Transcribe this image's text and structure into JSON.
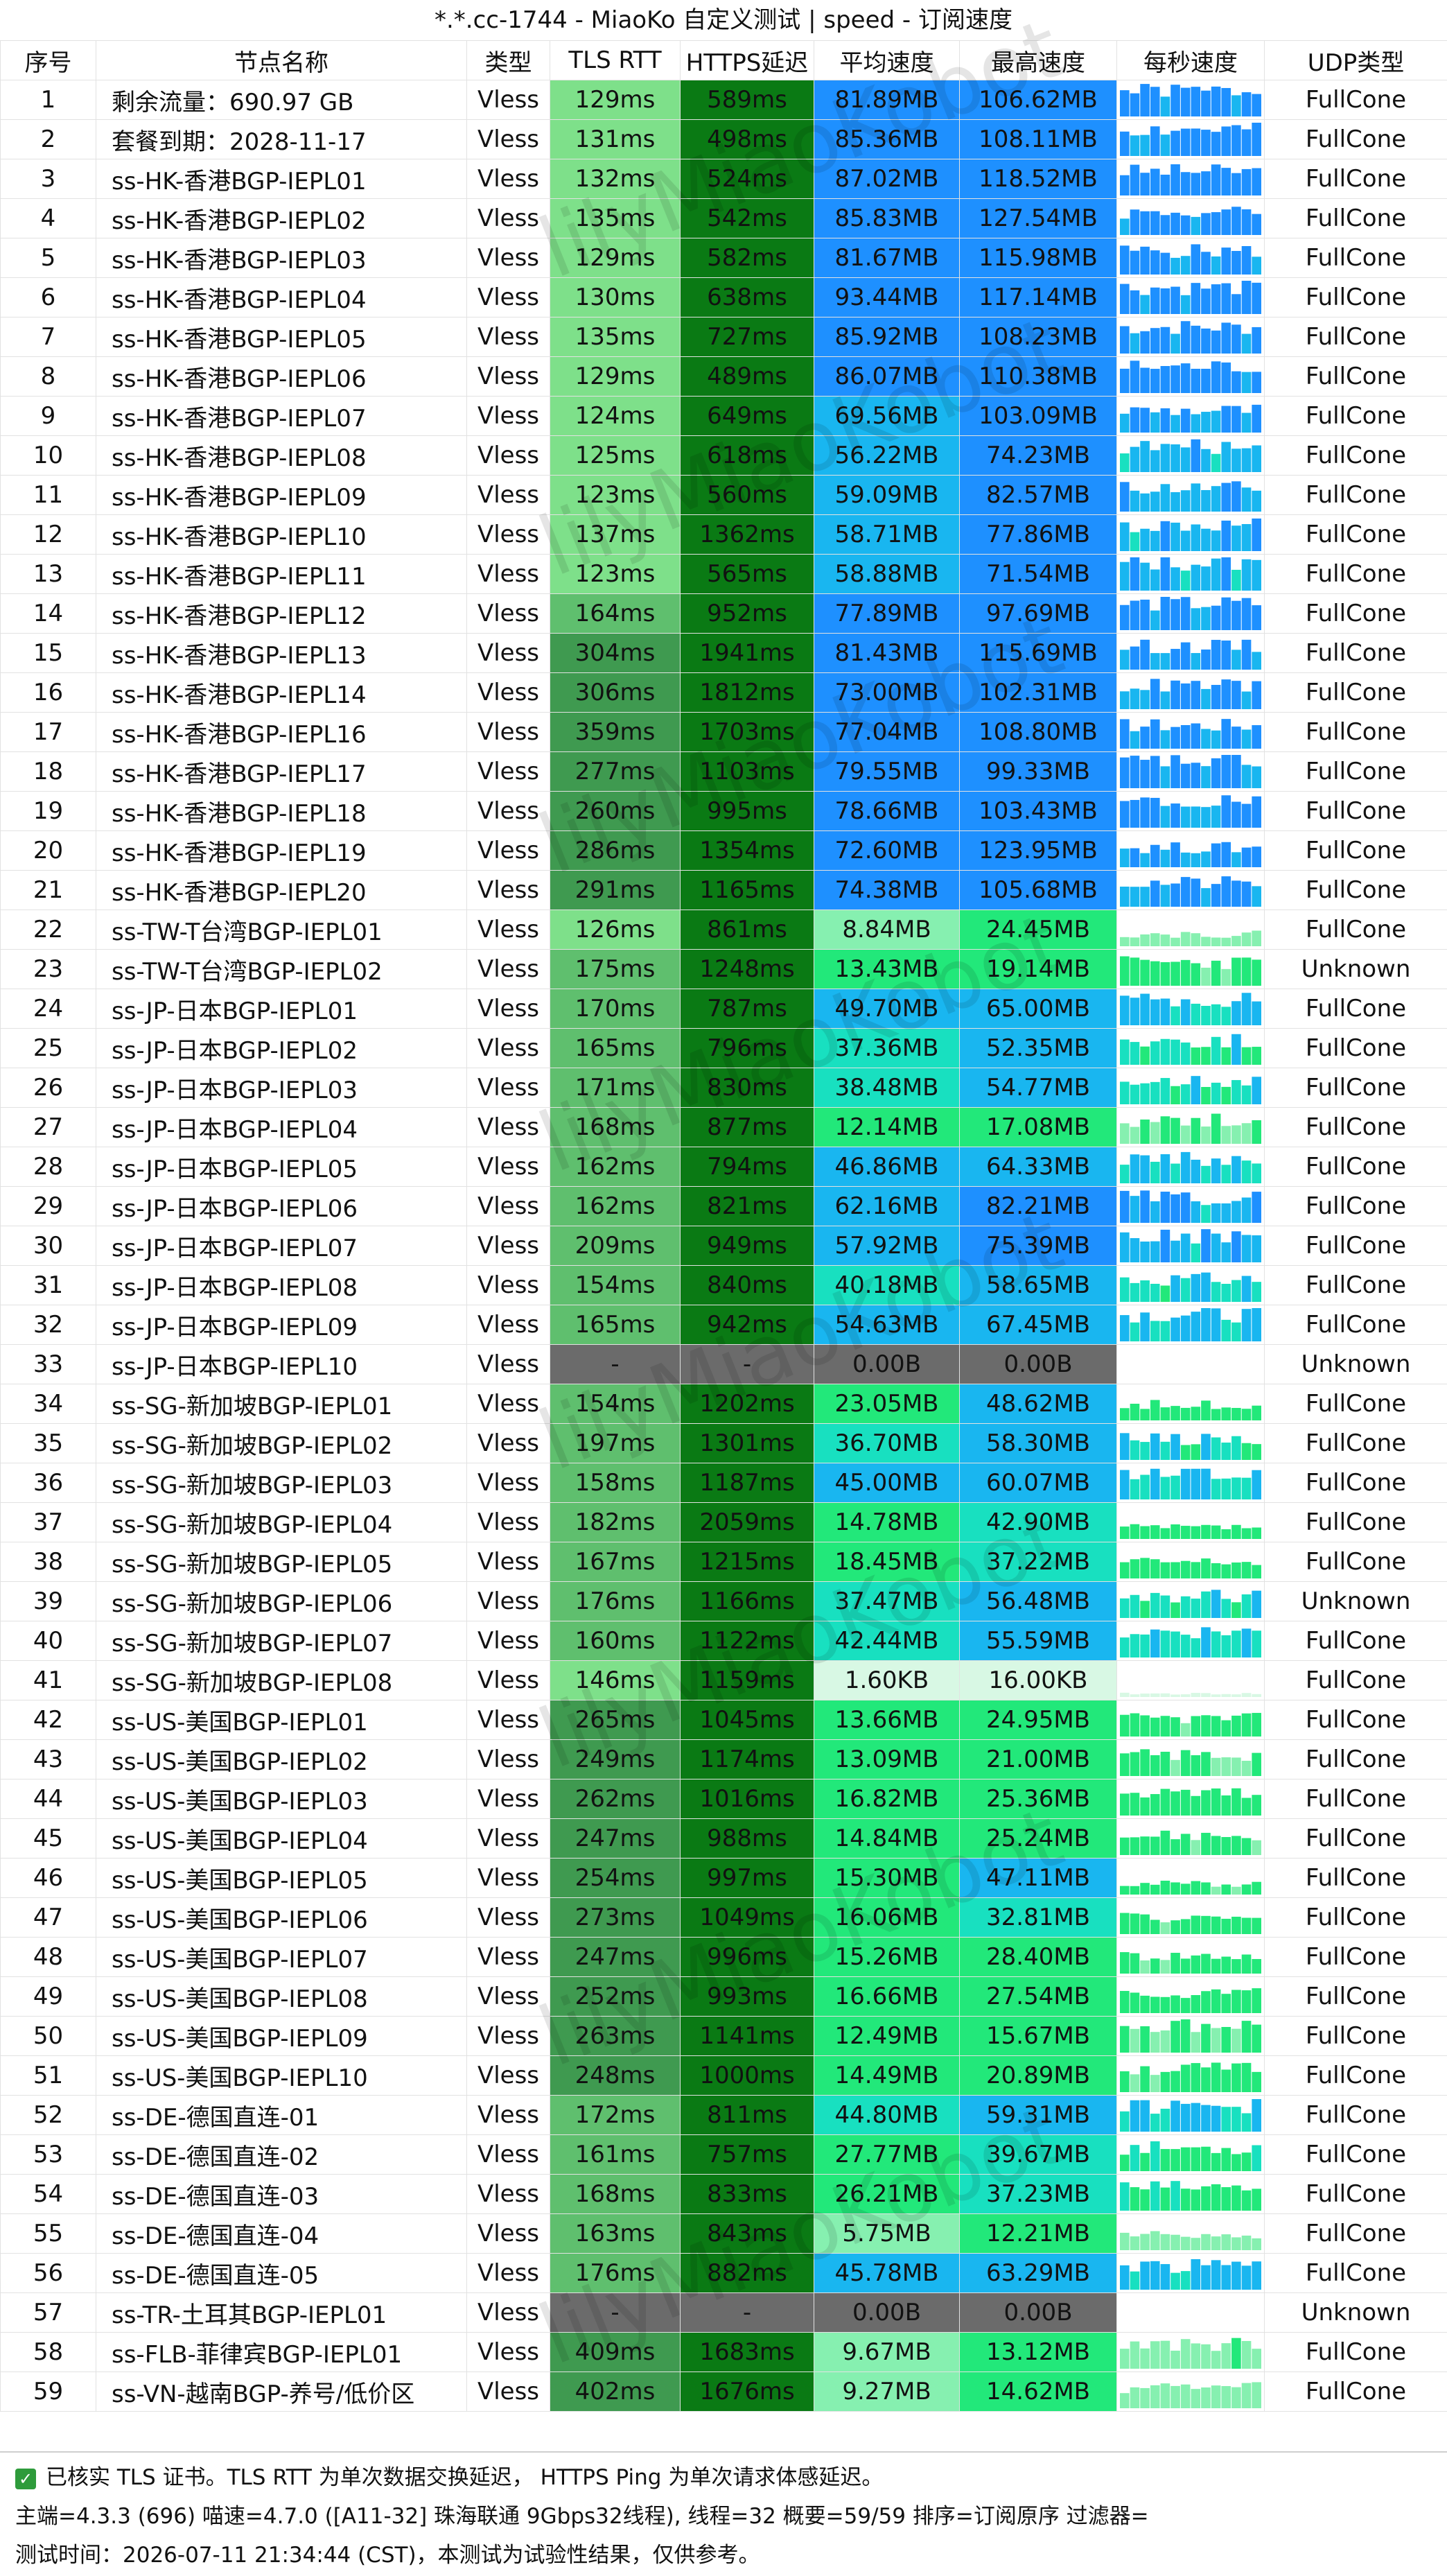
{
  "title": "*.*.cc-1744 - MiaoKo 自定义测试 | speed - 订阅速度",
  "headers": [
    "序号",
    "节点名称",
    "类型",
    "TLS RTT",
    "HTTPS延迟",
    "平均速度",
    "最高速度",
    "每秒速度",
    "UDP类型"
  ],
  "rows": [
    {
      "idx": "1",
      "name": "剩余流量：690.97 GB",
      "type": "Vless",
      "tls": "129ms",
      "https": "589ms",
      "avg": "81.89MB",
      "max": "106.62MB",
      "udp": "FullCone"
    },
    {
      "idx": "2",
      "name": "套餐到期：2028-11-17",
      "type": "Vless",
      "tls": "131ms",
      "https": "498ms",
      "avg": "85.36MB",
      "max": "108.11MB",
      "udp": "FullCone"
    },
    {
      "idx": "3",
      "name": "ss-HK-香港BGP-IEPL01",
      "type": "Vless",
      "tls": "132ms",
      "https": "524ms",
      "avg": "87.02MB",
      "max": "118.52MB",
      "udp": "FullCone"
    },
    {
      "idx": "4",
      "name": "ss-HK-香港BGP-IEPL02",
      "type": "Vless",
      "tls": "135ms",
      "https": "542ms",
      "avg": "85.83MB",
      "max": "127.54MB",
      "udp": "FullCone"
    },
    {
      "idx": "5",
      "name": "ss-HK-香港BGP-IEPL03",
      "type": "Vless",
      "tls": "129ms",
      "https": "582ms",
      "avg": "81.67MB",
      "max": "115.98MB",
      "udp": "FullCone"
    },
    {
      "idx": "6",
      "name": "ss-HK-香港BGP-IEPL04",
      "type": "Vless",
      "tls": "130ms",
      "https": "638ms",
      "avg": "93.44MB",
      "max": "117.14MB",
      "udp": "FullCone"
    },
    {
      "idx": "7",
      "name": "ss-HK-香港BGP-IEPL05",
      "type": "Vless",
      "tls": "135ms",
      "https": "727ms",
      "avg": "85.92MB",
      "max": "108.23MB",
      "udp": "FullCone"
    },
    {
      "idx": "8",
      "name": "ss-HK-香港BGP-IEPL06",
      "type": "Vless",
      "tls": "129ms",
      "https": "489ms",
      "avg": "86.07MB",
      "max": "110.38MB",
      "udp": "FullCone"
    },
    {
      "idx": "9",
      "name": "ss-HK-香港BGP-IEPL07",
      "type": "Vless",
      "tls": "124ms",
      "https": "649ms",
      "avg": "69.56MB",
      "max": "103.09MB",
      "udp": "FullCone"
    },
    {
      "idx": "10",
      "name": "ss-HK-香港BGP-IEPL08",
      "type": "Vless",
      "tls": "125ms",
      "https": "618ms",
      "avg": "56.22MB",
      "max": "74.23MB",
      "udp": "FullCone"
    },
    {
      "idx": "11",
      "name": "ss-HK-香港BGP-IEPL09",
      "type": "Vless",
      "tls": "123ms",
      "https": "560ms",
      "avg": "59.09MB",
      "max": "82.57MB",
      "udp": "FullCone"
    },
    {
      "idx": "12",
      "name": "ss-HK-香港BGP-IEPL10",
      "type": "Vless",
      "tls": "137ms",
      "https": "1362ms",
      "avg": "58.71MB",
      "max": "77.86MB",
      "udp": "FullCone"
    },
    {
      "idx": "13",
      "name": "ss-HK-香港BGP-IEPL11",
      "type": "Vless",
      "tls": "123ms",
      "https": "565ms",
      "avg": "58.88MB",
      "max": "71.54MB",
      "udp": "FullCone"
    },
    {
      "idx": "14",
      "name": "ss-HK-香港BGP-IEPL12",
      "type": "Vless",
      "tls": "164ms",
      "https": "952ms",
      "avg": "77.89MB",
      "max": "97.69MB",
      "udp": "FullCone"
    },
    {
      "idx": "15",
      "name": "ss-HK-香港BGP-IEPL13",
      "type": "Vless",
      "tls": "304ms",
      "https": "1941ms",
      "avg": "81.43MB",
      "max": "115.69MB",
      "udp": "FullCone"
    },
    {
      "idx": "16",
      "name": "ss-HK-香港BGP-IEPL14",
      "type": "Vless",
      "tls": "306ms",
      "https": "1812ms",
      "avg": "73.00MB",
      "max": "102.31MB",
      "udp": "FullCone"
    },
    {
      "idx": "17",
      "name": "ss-HK-香港BGP-IEPL16",
      "type": "Vless",
      "tls": "359ms",
      "https": "1703ms",
      "avg": "77.04MB",
      "max": "108.80MB",
      "udp": "FullCone"
    },
    {
      "idx": "18",
      "name": "ss-HK-香港BGP-IEPL17",
      "type": "Vless",
      "tls": "277ms",
      "https": "1103ms",
      "avg": "79.55MB",
      "max": "99.33MB",
      "udp": "FullCone"
    },
    {
      "idx": "19",
      "name": "ss-HK-香港BGP-IEPL18",
      "type": "Vless",
      "tls": "260ms",
      "https": "995ms",
      "avg": "78.66MB",
      "max": "103.43MB",
      "udp": "FullCone"
    },
    {
      "idx": "20",
      "name": "ss-HK-香港BGP-IEPL19",
      "type": "Vless",
      "tls": "286ms",
      "https": "1354ms",
      "avg": "72.60MB",
      "max": "123.95MB",
      "udp": "FullCone"
    },
    {
      "idx": "21",
      "name": "ss-HK-香港BGP-IEPL20",
      "type": "Vless",
      "tls": "291ms",
      "https": "1165ms",
      "avg": "74.38MB",
      "max": "105.68MB",
      "udp": "FullCone"
    },
    {
      "idx": "22",
      "name": "ss-TW-T台湾BGP-IEPL01",
      "type": "Vless",
      "tls": "126ms",
      "https": "861ms",
      "avg": "8.84MB",
      "max": "24.45MB",
      "udp": "FullCone"
    },
    {
      "idx": "23",
      "name": "ss-TW-T台湾BGP-IEPL02",
      "type": "Vless",
      "tls": "175ms",
      "https": "1248ms",
      "avg": "13.43MB",
      "max": "19.14MB",
      "udp": "Unknown"
    },
    {
      "idx": "24",
      "name": "ss-JP-日本BGP-IEPL01",
      "type": "Vless",
      "tls": "170ms",
      "https": "787ms",
      "avg": "49.70MB",
      "max": "65.00MB",
      "udp": "FullCone"
    },
    {
      "idx": "25",
      "name": "ss-JP-日本BGP-IEPL02",
      "type": "Vless",
      "tls": "165ms",
      "https": "796ms",
      "avg": "37.36MB",
      "max": "52.35MB",
      "udp": "FullCone"
    },
    {
      "idx": "26",
      "name": "ss-JP-日本BGP-IEPL03",
      "type": "Vless",
      "tls": "171ms",
      "https": "830ms",
      "avg": "38.48MB",
      "max": "54.77MB",
      "udp": "FullCone"
    },
    {
      "idx": "27",
      "name": "ss-JP-日本BGP-IEPL04",
      "type": "Vless",
      "tls": "168ms",
      "https": "877ms",
      "avg": "12.14MB",
      "max": "17.08MB",
      "udp": "FullCone"
    },
    {
      "idx": "28",
      "name": "ss-JP-日本BGP-IEPL05",
      "type": "Vless",
      "tls": "162ms",
      "https": "794ms",
      "avg": "46.86MB",
      "max": "64.33MB",
      "udp": "FullCone"
    },
    {
      "idx": "29",
      "name": "ss-JP-日本BGP-IEPL06",
      "type": "Vless",
      "tls": "162ms",
      "https": "821ms",
      "avg": "62.16MB",
      "max": "82.21MB",
      "udp": "FullCone"
    },
    {
      "idx": "30",
      "name": "ss-JP-日本BGP-IEPL07",
      "type": "Vless",
      "tls": "209ms",
      "https": "949ms",
      "avg": "57.92MB",
      "max": "75.39MB",
      "udp": "FullCone"
    },
    {
      "idx": "31",
      "name": "ss-JP-日本BGP-IEPL08",
      "type": "Vless",
      "tls": "154ms",
      "https": "840ms",
      "avg": "40.18MB",
      "max": "58.65MB",
      "udp": "FullCone"
    },
    {
      "idx": "32",
      "name": "ss-JP-日本BGP-IEPL09",
      "type": "Vless",
      "tls": "165ms",
      "https": "942ms",
      "avg": "54.63MB",
      "max": "67.45MB",
      "udp": "FullCone"
    },
    {
      "idx": "33",
      "name": "ss-JP-日本BGP-IEPL10",
      "type": "Vless",
      "tls": "-",
      "https": "-",
      "avg": "0.00B",
      "max": "0.00B",
      "udp": "Unknown"
    },
    {
      "idx": "34",
      "name": "ss-SG-新加坡BGP-IEPL01",
      "type": "Vless",
      "tls": "154ms",
      "https": "1202ms",
      "avg": "23.05MB",
      "max": "48.62MB",
      "udp": "FullCone"
    },
    {
      "idx": "35",
      "name": "ss-SG-新加坡BGP-IEPL02",
      "type": "Vless",
      "tls": "197ms",
      "https": "1301ms",
      "avg": "36.70MB",
      "max": "58.30MB",
      "udp": "FullCone"
    },
    {
      "idx": "36",
      "name": "ss-SG-新加坡BGP-IEPL03",
      "type": "Vless",
      "tls": "158ms",
      "https": "1187ms",
      "avg": "45.00MB",
      "max": "60.07MB",
      "udp": "FullCone"
    },
    {
      "idx": "37",
      "name": "ss-SG-新加坡BGP-IEPL04",
      "type": "Vless",
      "tls": "182ms",
      "https": "2059ms",
      "avg": "14.78MB",
      "max": "42.90MB",
      "udp": "FullCone"
    },
    {
      "idx": "38",
      "name": "ss-SG-新加坡BGP-IEPL05",
      "type": "Vless",
      "tls": "167ms",
      "https": "1215ms",
      "avg": "18.45MB",
      "max": "37.22MB",
      "udp": "FullCone"
    },
    {
      "idx": "39",
      "name": "ss-SG-新加坡BGP-IEPL06",
      "type": "Vless",
      "tls": "176ms",
      "https": "1166ms",
      "avg": "37.47MB",
      "max": "56.48MB",
      "udp": "Unknown"
    },
    {
      "idx": "40",
      "name": "ss-SG-新加坡BGP-IEPL07",
      "type": "Vless",
      "tls": "160ms",
      "https": "1122ms",
      "avg": "42.44MB",
      "max": "55.59MB",
      "udp": "FullCone"
    },
    {
      "idx": "41",
      "name": "ss-SG-新加坡BGP-IEPL08",
      "type": "Vless",
      "tls": "146ms",
      "https": "1159ms",
      "avg": "1.60KB",
      "max": "16.00KB",
      "udp": "FullCone"
    },
    {
      "idx": "42",
      "name": "ss-US-美国BGP-IEPL01",
      "type": "Vless",
      "tls": "265ms",
      "https": "1045ms",
      "avg": "13.66MB",
      "max": "24.95MB",
      "udp": "FullCone"
    },
    {
      "idx": "43",
      "name": "ss-US-美国BGP-IEPL02",
      "type": "Vless",
      "tls": "249ms",
      "https": "1174ms",
      "avg": "13.09MB",
      "max": "21.00MB",
      "udp": "FullCone"
    },
    {
      "idx": "44",
      "name": "ss-US-美国BGP-IEPL03",
      "type": "Vless",
      "tls": "262ms",
      "https": "1016ms",
      "avg": "16.82MB",
      "max": "25.36MB",
      "udp": "FullCone"
    },
    {
      "idx": "45",
      "name": "ss-US-美国BGP-IEPL04",
      "type": "Vless",
      "tls": "247ms",
      "https": "988ms",
      "avg": "14.84MB",
      "max": "25.24MB",
      "udp": "FullCone"
    },
    {
      "idx": "46",
      "name": "ss-US-美国BGP-IEPL05",
      "type": "Vless",
      "tls": "254ms",
      "https": "997ms",
      "avg": "15.30MB",
      "max": "47.11MB",
      "udp": "FullCone"
    },
    {
      "idx": "47",
      "name": "ss-US-美国BGP-IEPL06",
      "type": "Vless",
      "tls": "273ms",
      "https": "1049ms",
      "avg": "16.06MB",
      "max": "32.81MB",
      "udp": "FullCone"
    },
    {
      "idx": "48",
      "name": "ss-US-美国BGP-IEPL07",
      "type": "Vless",
      "tls": "247ms",
      "https": "996ms",
      "avg": "15.26MB",
      "max": "28.40MB",
      "udp": "FullCone"
    },
    {
      "idx": "49",
      "name": "ss-US-美国BGP-IEPL08",
      "type": "Vless",
      "tls": "252ms",
      "https": "993ms",
      "avg": "16.66MB",
      "max": "27.54MB",
      "udp": "FullCone"
    },
    {
      "idx": "50",
      "name": "ss-US-美国BGP-IEPL09",
      "type": "Vless",
      "tls": "263ms",
      "https": "1141ms",
      "avg": "12.49MB",
      "max": "15.67MB",
      "udp": "FullCone"
    },
    {
      "idx": "51",
      "name": "ss-US-美国BGP-IEPL10",
      "type": "Vless",
      "tls": "248ms",
      "https": "1000ms",
      "avg": "14.49MB",
      "max": "20.89MB",
      "udp": "FullCone"
    },
    {
      "idx": "52",
      "name": "ss-DE-德国直连-01",
      "type": "Vless",
      "tls": "172ms",
      "https": "811ms",
      "avg": "44.80MB",
      "max": "59.31MB",
      "udp": "FullCone"
    },
    {
      "idx": "53",
      "name": "ss-DE-德国直连-02",
      "type": "Vless",
      "tls": "161ms",
      "https": "757ms",
      "avg": "27.77MB",
      "max": "39.67MB",
      "udp": "FullCone"
    },
    {
      "idx": "54",
      "name": "ss-DE-德国直连-03",
      "type": "Vless",
      "tls": "168ms",
      "https": "833ms",
      "avg": "26.21MB",
      "max": "37.23MB",
      "udp": "FullCone"
    },
    {
      "idx": "55",
      "name": "ss-DE-德国直连-04",
      "type": "Vless",
      "tls": "163ms",
      "https": "843ms",
      "avg": "5.75MB",
      "max": "12.21MB",
      "udp": "FullCone"
    },
    {
      "idx": "56",
      "name": "ss-DE-德国直连-05",
      "type": "Vless",
      "tls": "176ms",
      "https": "882ms",
      "avg": "45.78MB",
      "max": "63.29MB",
      "udp": "FullCone"
    },
    {
      "idx": "57",
      "name": "ss-TR-土耳其BGP-IEPL01",
      "type": "Vless",
      "tls": "-",
      "https": "-",
      "avg": "0.00B",
      "max": "0.00B",
      "udp": "Unknown"
    },
    {
      "idx": "58",
      "name": "ss-FLB-菲律宾BGP-IEPL01",
      "type": "Vless",
      "tls": "409ms",
      "https": "1683ms",
      "avg": "9.67MB",
      "max": "13.12MB",
      "udp": "FullCone"
    },
    {
      "idx": "59",
      "name": "ss-VN-越南BGP-养号/低价区",
      "type": "Vless",
      "tls": "402ms",
      "https": "1676ms",
      "avg": "9.27MB",
      "max": "14.62MB",
      "udp": "FullCone"
    }
  ],
  "footer": {
    "line1": "已核实 TLS 证书。TLS RTT 为单次数据交换延迟，  HTTPS Ping 为单次请求体感延迟。",
    "line2": "主端=4.3.3 (696) 喵速=4.7.0 ([A11-32] 珠海联通 9Gbps32线程), 线程=32 概要=59/59 排序=订阅原序 过滤器=",
    "line3": "测试时间：2026-07-11 21:34:44 (CST)，本测试为试验性结果，仅供参考。"
  },
  "watermark": "lilyMiaoKobot",
  "colors": {
    "tls_good": "#7ee08a",
    "tls_mid": "#5fbf6e",
    "tls_bad": "#3f9a50",
    "https": "#0a7a14",
    "fail": "#6b6b6b",
    "speed_very_high": "#1e90ff",
    "speed_high": "#19b6f0",
    "speed_mid": "#18e0c0",
    "speed_low": "#22e87a",
    "speed_very_low": "#86f0b0",
    "speed_min": "#d8f8e4",
    "udp_fullcone": "FullCone",
    "check_icon": "#2e9b3b"
  }
}
